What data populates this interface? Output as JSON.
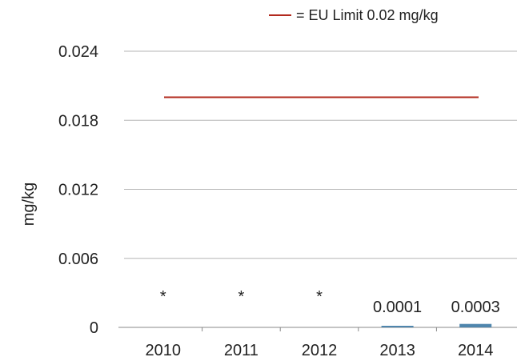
{
  "chart_data": {
    "type": "bar",
    "categories": [
      "2010",
      "2011",
      "2012",
      "2013",
      "2014"
    ],
    "values": [
      null,
      null,
      null,
      0.0001,
      0.0003
    ],
    "data_labels": [
      "*",
      "*",
      "*",
      "0.0001",
      "0.0003"
    ],
    "ylabel": "mg/kg",
    "ylim": [
      0,
      0.024
    ],
    "yticks": [
      0,
      0.006,
      0.012,
      0.018,
      0.024
    ],
    "ytick_labels": [
      "0",
      "0.006",
      "0.012",
      "0.018",
      "0.024"
    ],
    "grid": true,
    "bar_color": "#4f86ad",
    "reference_line": {
      "value": 0.02,
      "color": "#b22a1e",
      "legend": "= EU Limit 0.02 mg/kg"
    },
    "legend_position": "top-right"
  }
}
